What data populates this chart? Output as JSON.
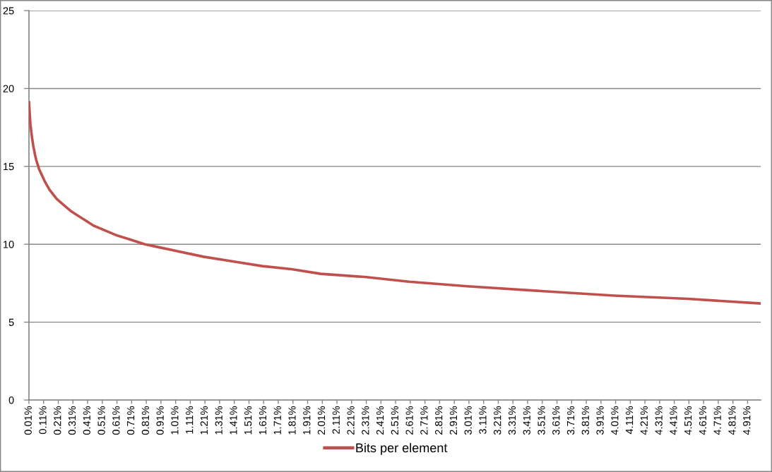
{
  "chart_data": {
    "type": "line",
    "x": [
      0.01,
      0.02,
      0.03,
      0.04,
      0.05,
      0.06,
      0.07,
      0.08,
      0.09,
      0.1,
      0.12,
      0.15,
      0.2,
      0.25,
      0.3,
      0.35,
      0.4,
      0.45,
      0.5,
      0.6,
      0.7,
      0.8,
      0.9,
      1.0,
      1.2,
      1.4,
      1.6,
      1.8,
      2.0,
      2.3,
      2.6,
      3.0,
      3.5,
      4.0,
      4.5,
      5.0
    ],
    "series": [
      {
        "name": "Bits per element",
        "color": "#c0504d",
        "values": [
          19.2,
          17.7,
          16.9,
          16.3,
          15.8,
          15.4,
          15.1,
          14.8,
          14.6,
          14.4,
          14.0,
          13.5,
          12.9,
          12.5,
          12.1,
          11.8,
          11.5,
          11.2,
          11.0,
          10.6,
          10.3,
          10.0,
          9.8,
          9.6,
          9.2,
          8.9,
          8.6,
          8.4,
          8.1,
          7.9,
          7.6,
          7.3,
          7.0,
          6.7,
          6.5,
          6.2
        ]
      }
    ],
    "xlim": [
      0.01,
      5.0
    ],
    "xticks": [
      {
        "value": 0.01,
        "label": "0.01%"
      },
      {
        "value": 0.11,
        "label": "0.11%"
      },
      {
        "value": 0.21,
        "label": "0.21%"
      },
      {
        "value": 0.31,
        "label": "0.31%"
      },
      {
        "value": 0.41,
        "label": "0.41%"
      },
      {
        "value": 0.51,
        "label": "0.51%"
      },
      {
        "value": 0.61,
        "label": "0.61%"
      },
      {
        "value": 0.71,
        "label": "0.71%"
      },
      {
        "value": 0.81,
        "label": "0.81%"
      },
      {
        "value": 0.91,
        "label": "0.91%"
      },
      {
        "value": 1.01,
        "label": "1.01%"
      },
      {
        "value": 1.11,
        "label": "1.11%"
      },
      {
        "value": 1.21,
        "label": "1.21%"
      },
      {
        "value": 1.31,
        "label": "1.31%"
      },
      {
        "value": 1.41,
        "label": "1.41%"
      },
      {
        "value": 1.51,
        "label": "1.51%"
      },
      {
        "value": 1.61,
        "label": "1.61%"
      },
      {
        "value": 1.71,
        "label": "1.71%"
      },
      {
        "value": 1.81,
        "label": "1.81%"
      },
      {
        "value": 1.91,
        "label": "1.91%"
      },
      {
        "value": 2.01,
        "label": "2.01%"
      },
      {
        "value": 2.11,
        "label": "2.11%"
      },
      {
        "value": 2.21,
        "label": "2.21%"
      },
      {
        "value": 2.31,
        "label": "2.31%"
      },
      {
        "value": 2.41,
        "label": "2.41%"
      },
      {
        "value": 2.51,
        "label": "2.51%"
      },
      {
        "value": 2.61,
        "label": "2.61%"
      },
      {
        "value": 2.71,
        "label": "2.71%"
      },
      {
        "value": 2.81,
        "label": "2.81%"
      },
      {
        "value": 2.91,
        "label": "2.91%"
      },
      {
        "value": 3.01,
        "label": "3.01%"
      },
      {
        "value": 3.11,
        "label": "3.11%"
      },
      {
        "value": 3.21,
        "label": "3.21%"
      },
      {
        "value": 3.31,
        "label": "3.31%"
      },
      {
        "value": 3.41,
        "label": "3.41%"
      },
      {
        "value": 3.51,
        "label": "3.51%"
      },
      {
        "value": 3.61,
        "label": "3.61%"
      },
      {
        "value": 3.71,
        "label": "3.71%"
      },
      {
        "value": 3.81,
        "label": "3.81%"
      },
      {
        "value": 3.91,
        "label": "3.91%"
      },
      {
        "value": 4.01,
        "label": "4.01%"
      },
      {
        "value": 4.11,
        "label": "4.11%"
      },
      {
        "value": 4.21,
        "label": "4.21%"
      },
      {
        "value": 4.31,
        "label": "4.31%"
      },
      {
        "value": 4.41,
        "label": "4.41%"
      },
      {
        "value": 4.51,
        "label": "4.51%"
      },
      {
        "value": 4.61,
        "label": "4.61%"
      },
      {
        "value": 4.71,
        "label": "4.71%"
      },
      {
        "value": 4.81,
        "label": "4.81%"
      },
      {
        "value": 4.91,
        "label": "4.91%"
      }
    ],
    "ylim": [
      0,
      25
    ],
    "yticks": [
      0,
      5,
      10,
      15,
      20,
      25
    ],
    "grid": "y",
    "legend": "bottom",
    "line_style": "solid"
  }
}
